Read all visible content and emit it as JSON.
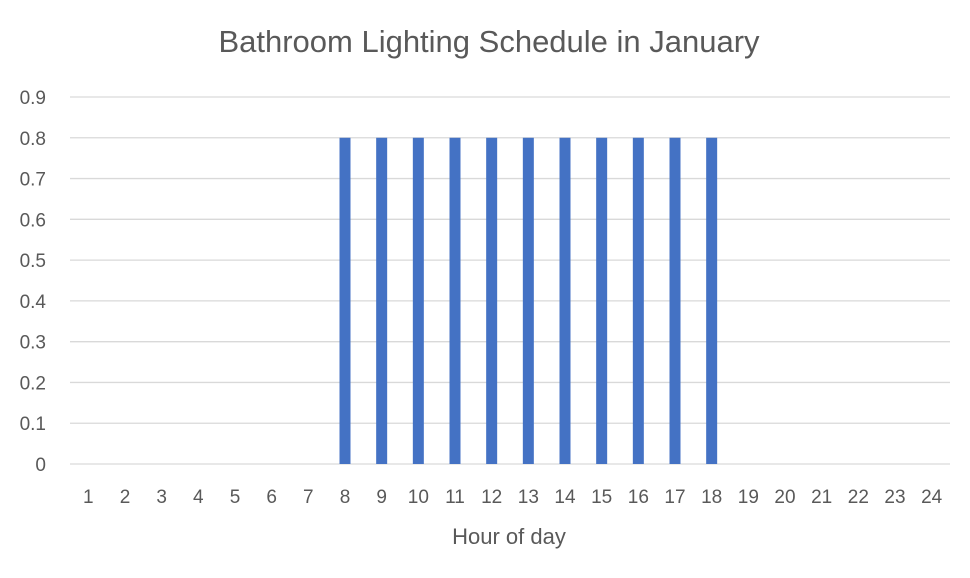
{
  "chart_data": {
    "type": "bar",
    "title": "Bathroom Lighting Schedule in January",
    "xlabel": "Hour of day",
    "ylabel": "",
    "categories": [
      "1",
      "2",
      "3",
      "4",
      "5",
      "6",
      "7",
      "8",
      "9",
      "10",
      "11",
      "12",
      "13",
      "14",
      "15",
      "16",
      "17",
      "18",
      "19",
      "20",
      "21",
      "22",
      "23",
      "24"
    ],
    "values": [
      0,
      0,
      0,
      0,
      0,
      0,
      0,
      0.8,
      0.8,
      0.8,
      0.8,
      0.8,
      0.8,
      0.8,
      0.8,
      0.8,
      0.8,
      0.8,
      0,
      0,
      0,
      0,
      0,
      0
    ],
    "ylim": [
      0,
      0.9
    ],
    "yticks": [
      "0",
      "0.1",
      "0.2",
      "0.3",
      "0.4",
      "0.5",
      "0.6",
      "0.7",
      "0.8",
      "0.9"
    ],
    "grid": true,
    "legend": "none",
    "bar_color": "#4472c4"
  }
}
